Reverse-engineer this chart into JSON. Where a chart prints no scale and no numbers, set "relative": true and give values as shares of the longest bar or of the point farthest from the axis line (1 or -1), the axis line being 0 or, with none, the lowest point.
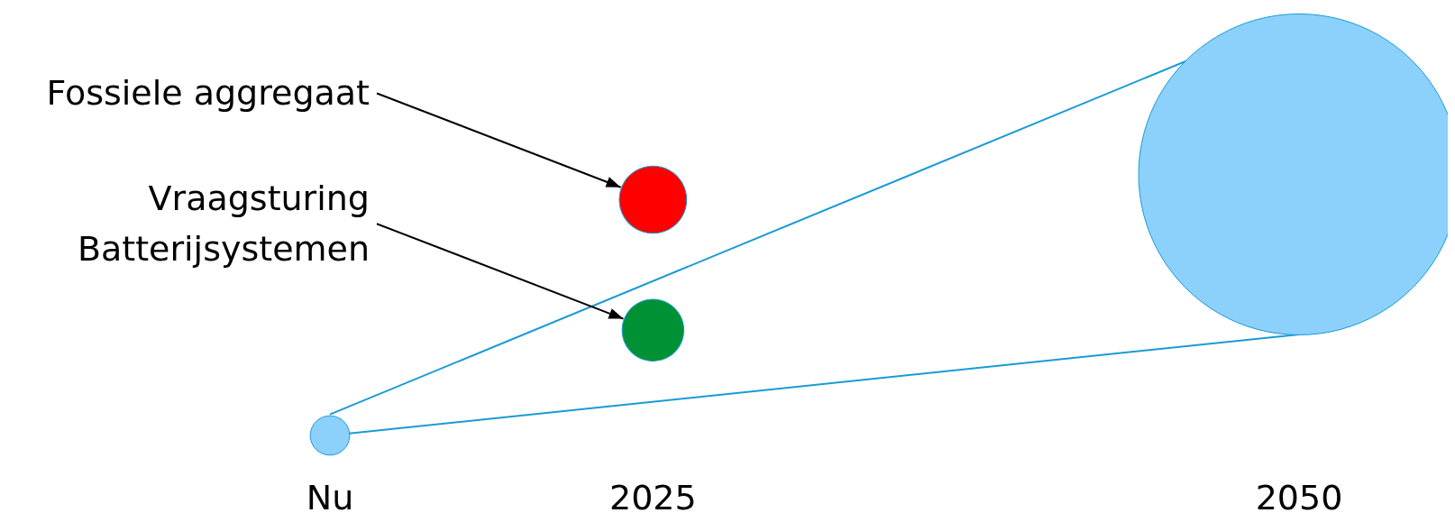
{
  "chart_data": {
    "type": "bubble",
    "relative": true,
    "categories": [
      "Nu",
      "2025",
      null,
      "2050"
    ],
    "series": [
      {
        "type": "line",
        "color": "#1a9ad6",
        "values": [
          0.05,
          null,
          null,
          1
        ]
      },
      {
        "type": "line",
        "color": "#1a9ad6",
        "values": [
          0,
          null,
          null,
          0.24
        ]
      },
      {
        "color": "#8bd1fc",
        "values": [
          0,
          null,
          null,
          0.62
        ],
        "sizes": [
          0.015,
          null,
          null,
          1
        ]
      },
      {
        "color": "#ff0000",
        "values": [
          null,
          0.56,
          null,
          null
        ],
        "sizes": [
          null,
          0.044,
          null,
          null
        ]
      },
      {
        "color": "#009135",
        "values": [
          null,
          0.25,
          null,
          null
        ],
        "sizes": [
          null,
          0.037,
          null,
          null
        ]
      }
    ],
    "annotations": [
      "Fossiele aggregaat",
      "Vraagsturing\nBatterijsystemen"
    ]
  }
}
